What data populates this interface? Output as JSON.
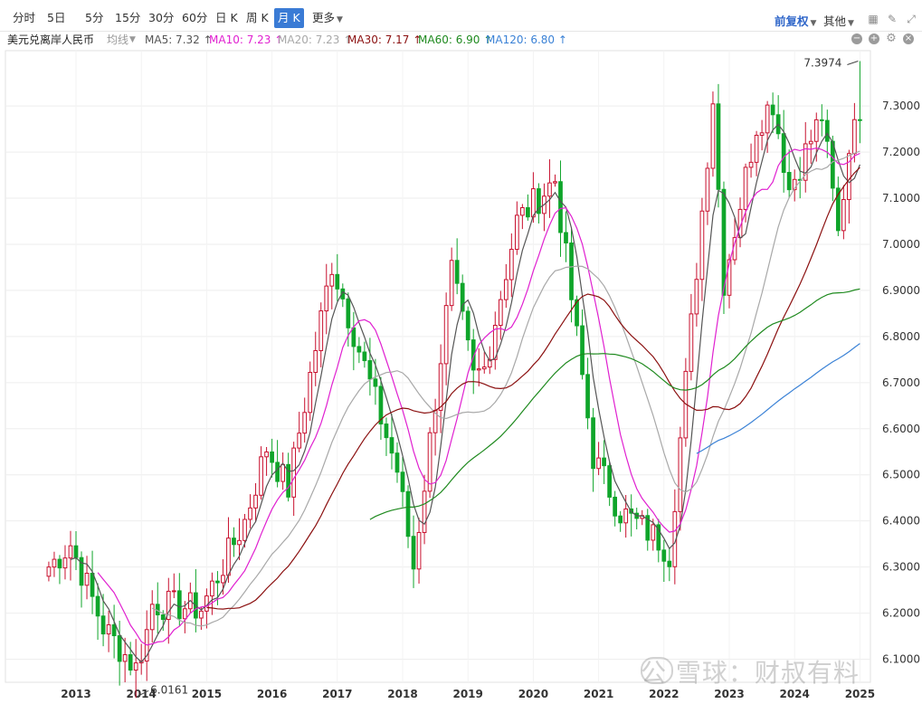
{
  "toolbar": {
    "periods": [
      "分时",
      "5日",
      "5分",
      "15分",
      "30分",
      "60分",
      "日 K",
      "周 K",
      "月 K",
      "更多"
    ],
    "active_period": "月 K",
    "adjust": "前复权",
    "other": "其他"
  },
  "ma_bar": {
    "symbol": "美元兑离岸人民币",
    "label": "均线",
    "items": [
      {
        "text": "MA5: 7.32 ↑",
        "color": "#555555"
      },
      {
        "text": "MA10: 7.23 ↑",
        "color": "#e020d0"
      },
      {
        "text": "MA20: 7.23 ↑",
        "color": "#a8a8a8"
      },
      {
        "text": "MA30: 7.17 ↑",
        "color": "#8b1010"
      },
      {
        "text": "MA60: 6.90 ↑",
        "color": "#1f8a1f"
      },
      {
        "text": "MA120: 6.80 ↑",
        "color": "#3b82d6"
      }
    ]
  },
  "watermark": "公 雪球：财叔有料",
  "chart_data": {
    "type": "candlestick",
    "interval": "monthly",
    "ylim": [
      6.05,
      7.42
    ],
    "yticks": [
      "6.1000",
      "6.2000",
      "6.3000",
      "6.4000",
      "6.5000",
      "6.6000",
      "6.7000",
      "6.8000",
      "6.9000",
      "7.0000",
      "7.1000",
      "7.2000",
      "7.3000"
    ],
    "xticks": [
      "2013",
      "2014",
      "2015",
      "2016",
      "2017",
      "2018",
      "2019",
      "2020",
      "2021",
      "2022",
      "2023",
      "2024",
      "2025"
    ],
    "annotations": [
      {
        "text": "7.3974",
        "value": 7.3974,
        "kind": "high"
      },
      {
        "text": "6.0161",
        "value": 6.0161,
        "kind": "low"
      }
    ],
    "anchors": [
      [
        "2012-08",
        6.3
      ],
      [
        "2012-12",
        6.35
      ],
      [
        "2013-06",
        6.17
      ],
      [
        "2013-12",
        6.08
      ],
      [
        "2014-02",
        6.16
      ],
      [
        "2014-03",
        6.22
      ],
      [
        "2014-12",
        6.21
      ],
      [
        "2015-08",
        6.4
      ],
      [
        "2015-12",
        6.56
      ],
      [
        "2016-04",
        6.47
      ],
      [
        "2016-12",
        6.96
      ],
      [
        "2017-12",
        6.51
      ],
      [
        "2018-03",
        6.3
      ],
      [
        "2018-10",
        6.94
      ],
      [
        "2019-02",
        6.71
      ],
      [
        "2019-04",
        6.73
      ],
      [
        "2019-10",
        7.05
      ],
      [
        "2020-05",
        7.14
      ],
      [
        "2020-12",
        6.54
      ],
      [
        "2021-05",
        6.42
      ],
      [
        "2021-12",
        6.36
      ],
      [
        "2022-02",
        6.33
      ],
      [
        "2022-10",
        7.32
      ],
      [
        "2022-12",
        6.92
      ],
      [
        "2023-06",
        7.26
      ],
      [
        "2023-09",
        7.31
      ],
      [
        "2023-12",
        7.12
      ],
      [
        "2024-06",
        7.28
      ],
      [
        "2024-09",
        7.02
      ],
      [
        "2024-12",
        7.3
      ],
      [
        "2025-01",
        7.27
      ]
    ],
    "series": [
      {
        "name": "MA5",
        "color": "#555555",
        "window": 5
      },
      {
        "name": "MA10",
        "color": "#e020d0",
        "window": 10
      },
      {
        "name": "MA20",
        "color": "#a8a8a8",
        "window": 20
      },
      {
        "name": "MA30",
        "color": "#8b1010",
        "window": 30
      },
      {
        "name": "MA60",
        "color": "#1f8a1f",
        "window": 60
      },
      {
        "name": "MA120",
        "color": "#3b82d6",
        "window": 120
      }
    ],
    "up_color": "#c8102e",
    "down_color": "#0fa52a"
  }
}
